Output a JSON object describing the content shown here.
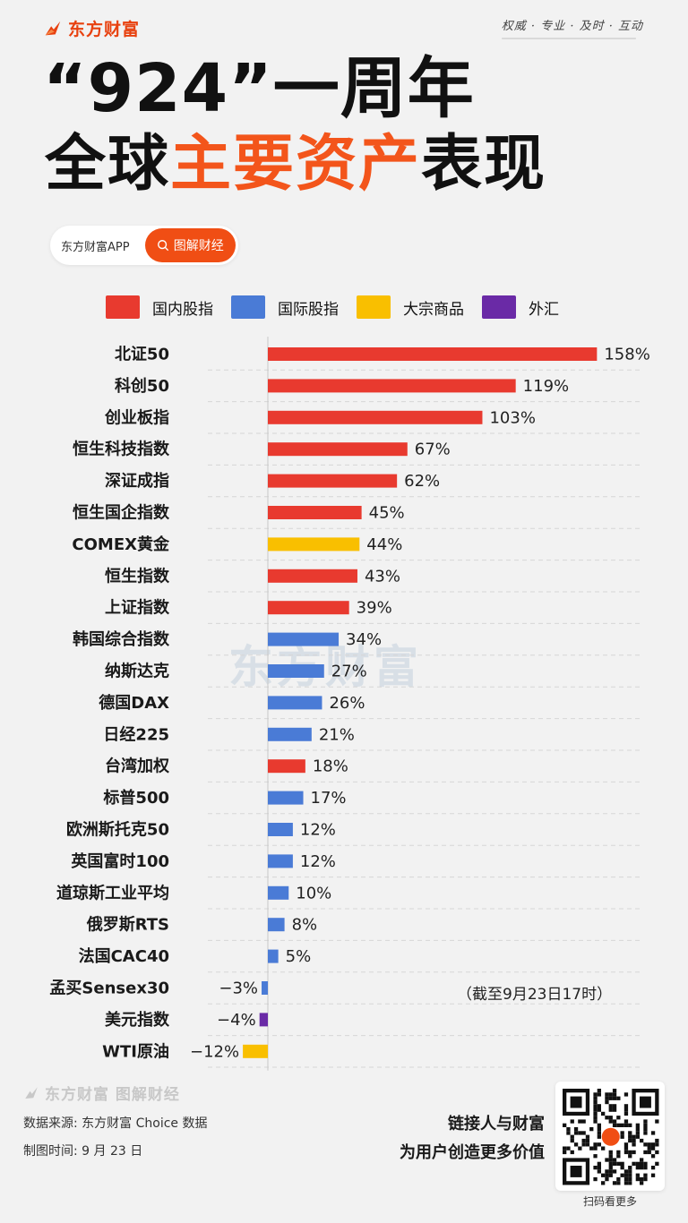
{
  "header": {
    "brand": "东方财富",
    "slogan": "权威 · 专业 · 及时 · 互动",
    "title_line1": "“924”一周年",
    "title_line2_a": "全球",
    "title_line2_b": "主要资产",
    "title_line2_c": "表现"
  },
  "search": {
    "app_text": "东方财富APP",
    "button_label": "图解财经"
  },
  "colors": {
    "domestic": "#e83a2f",
    "international": "#4a7bd6",
    "commodity": "#f9bf00",
    "fx": "#6a2aa6",
    "accent": "#f04e14"
  },
  "legend": [
    {
      "label": "国内股指",
      "color": "#e83a2f"
    },
    {
      "label": "国际股指",
      "color": "#4a7bd6"
    },
    {
      "label": "大宗商品",
      "color": "#f9bf00"
    },
    {
      "label": "外汇",
      "color": "#6a2aa6"
    }
  ],
  "chart_data": {
    "type": "bar",
    "orientation": "horizontal",
    "title": "“924”一周年 全球主要资产表现",
    "xlabel": "",
    "ylabel": "",
    "grid": true,
    "legend_position": "top",
    "unit": "%",
    "categories": [
      "北证50",
      "科创50",
      "创业板指",
      "恒生科技指数",
      "深证成指",
      "恒生国企指数",
      "COMEX黄金",
      "恒生指数",
      "上证指数",
      "韩国综合指数",
      "纳斯达克",
      "德国DAX",
      "日经225",
      "台湾加权",
      "标普500",
      "欧洲斯托克50",
      "英国富时100",
      "道琼斯工业平均",
      "俄罗斯RTS",
      "法国CAC40",
      "孟买Sensex30",
      "美元指数",
      "WTI原油"
    ],
    "values": [
      158,
      119,
      103,
      67,
      62,
      45,
      44,
      43,
      39,
      34,
      27,
      26,
      21,
      18,
      17,
      12,
      12,
      10,
      8,
      5,
      -3,
      -4,
      -12
    ],
    "value_labels": [
      "158%",
      "119%",
      "103%",
      "67%",
      "62%",
      "45%",
      "44%",
      "43%",
      "39%",
      "34%",
      "27%",
      "26%",
      "21%",
      "18%",
      "17%",
      "12%",
      "12%",
      "10%",
      "8%",
      "5%",
      "−3%",
      "−4%",
      "−12%"
    ],
    "groups": [
      "国内股指",
      "国内股指",
      "国内股指",
      "国内股指",
      "国内股指",
      "国内股指",
      "大宗商品",
      "国内股指",
      "国内股指",
      "国际股指",
      "国际股指",
      "国际股指",
      "国际股指",
      "国内股指",
      "国际股指",
      "国际股指",
      "国际股指",
      "国际股指",
      "国际股指",
      "国际股指",
      "国际股指",
      "外汇",
      "大宗商品"
    ],
    "note": "（截至9月23日17时）"
  },
  "watermark": "东方财富",
  "footer": {
    "brand": "东方财富 图解财经",
    "source": "数据来源: 东方财富 Choice 数据",
    "made_time": "制图时间: 9 月 23 日",
    "tagline1": "链接人与财富",
    "tagline2": "为用户创造更多价值",
    "qr_caption": "扫码看更多"
  }
}
